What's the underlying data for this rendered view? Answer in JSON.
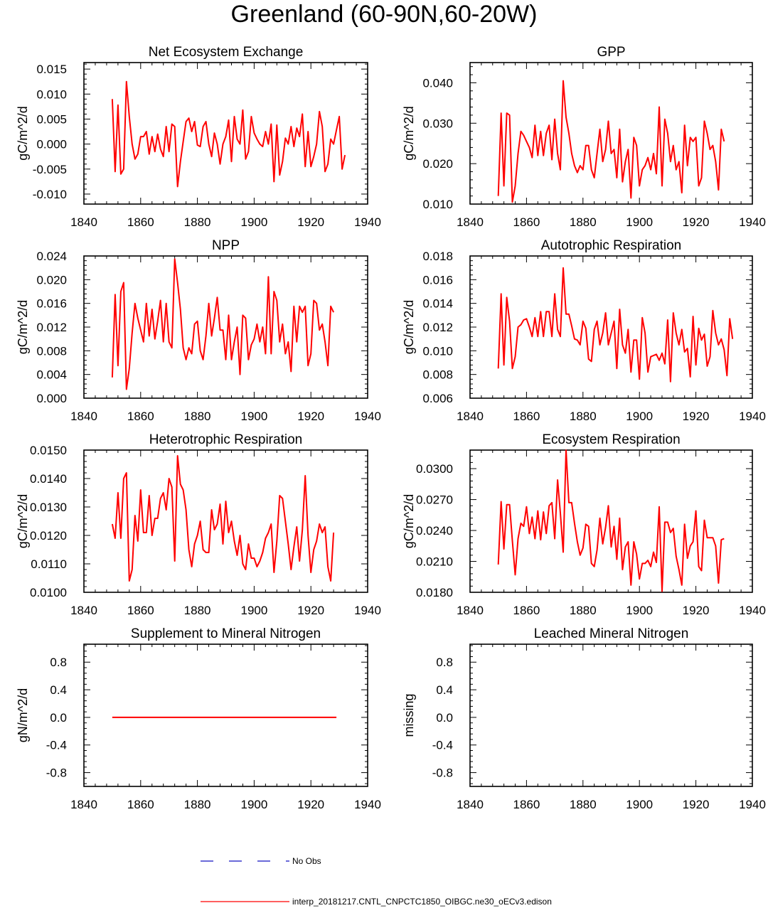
{
  "page": {
    "title": "Greenland (60-90N,60-20W)"
  },
  "legend": {
    "obs_label": "No Obs",
    "obs_color": "#1010c0",
    "model_label": "interp_20181217.CNTL_CNPCTC1850_OIBGC.ne30_oECv3.edison",
    "model_color": "#ff0000"
  },
  "chart_data": [
    {
      "type": "line",
      "title": "Net Ecosystem Exchange",
      "ylabel": "gC/m^2/d",
      "xlim": [
        1840,
        1940
      ],
      "ylim": [
        -0.012,
        0.0163
      ],
      "xticks": [
        1840,
        1860,
        1880,
        1900,
        1920,
        1940
      ],
      "yticks": [
        -0.01,
        -0.005,
        0.0,
        0.005,
        0.01,
        0.015
      ],
      "ytick_labels": [
        "-0.010",
        "-0.005",
        "0.000",
        "0.005",
        "0.010",
        "0.015"
      ],
      "series": [
        {
          "name": "interp_20181217.CNTL_CNPCTC1850_OIBGC.ne30_oECv3.edison",
          "color": "#ff0000",
          "x_start": 1850,
          "values": [
            0.009,
            -0.0055,
            0.0078,
            -0.006,
            -0.005,
            0.0125,
            0.0055,
            0.0,
            -0.003,
            -0.002,
            0.0015,
            0.0015,
            0.0025,
            -0.002,
            0.0015,
            -0.0015,
            0.002,
            -0.001,
            -0.0025,
            0.0035,
            -0.0015,
            0.004,
            0.0035,
            -0.0085,
            -0.0035,
            0.0005,
            0.0045,
            0.0052,
            0.0025,
            0.0045,
            -0.0002,
            -0.0005,
            0.0035,
            0.0045,
            0.0,
            -0.0025,
            0.0022,
            0.0,
            -0.004,
            0.0,
            0.0015,
            0.0048,
            -0.0035,
            0.0055,
            0.001,
            0.0,
            0.0068,
            -0.003,
            -0.0015,
            0.0055,
            0.0022,
            0.001,
            0.0,
            -0.0005,
            0.0025,
            0.0,
            0.004,
            -0.0075,
            0.0038,
            -0.0062,
            -0.0035,
            0.0012,
            0.0,
            0.0035,
            -0.0005,
            0.0032,
            0.0015,
            0.006,
            -0.0045,
            0.0025,
            -0.0045,
            -0.0025,
            0.0,
            0.0065,
            0.0035,
            -0.0055,
            -0.004,
            0.001,
            0.0,
            0.0028,
            0.0055,
            -0.005,
            -0.0022
          ]
        }
      ]
    },
    {
      "type": "line",
      "title": "GPP",
      "ylabel": "gC/m^2/d",
      "xlim": [
        1840,
        1940
      ],
      "ylim": [
        0.01,
        0.045
      ],
      "xticks": [
        1840,
        1860,
        1880,
        1900,
        1920,
        1940
      ],
      "yticks": [
        0.01,
        0.02,
        0.03,
        0.04
      ],
      "ytick_labels": [
        "0.010",
        "0.020",
        "0.030",
        "0.040"
      ],
      "series": [
        {
          "name": "interp_20181217.CNTL_CNPCTC1850_OIBGC.ne30_oECv3.edison",
          "color": "#ff0000",
          "x_start": 1850,
          "values": [
            0.012,
            0.0325,
            0.0145,
            0.0325,
            0.032,
            0.0105,
            0.0145,
            0.0225,
            0.028,
            0.027,
            0.0255,
            0.024,
            0.0215,
            0.0295,
            0.022,
            0.028,
            0.022,
            0.0275,
            0.0295,
            0.021,
            0.031,
            0.0225,
            0.0185,
            0.0405,
            0.0315,
            0.0275,
            0.0225,
            0.0195,
            0.0178,
            0.0195,
            0.0185,
            0.0245,
            0.0245,
            0.0185,
            0.0165,
            0.0225,
            0.0285,
            0.0205,
            0.0235,
            0.0305,
            0.0225,
            0.0235,
            0.0165,
            0.0285,
            0.0155,
            0.0205,
            0.0235,
            0.0115,
            0.0265,
            0.0245,
            0.0145,
            0.0185,
            0.0195,
            0.0215,
            0.0185,
            0.0225,
            0.0175,
            0.034,
            0.0145,
            0.031,
            0.0275,
            0.0205,
            0.0245,
            0.0185,
            0.0205,
            0.0128,
            0.0295,
            0.0195,
            0.0265,
            0.0255,
            0.0265,
            0.0145,
            0.0165,
            0.0305,
            0.0275,
            0.0235,
            0.0245,
            0.0205,
            0.0135,
            0.0285,
            0.0255
          ]
        }
      ]
    },
    {
      "type": "line",
      "title": "NPP",
      "ylabel": "gC/m^2/d",
      "xlim": [
        1840,
        1940
      ],
      "ylim": [
        0.0,
        0.024
      ],
      "xticks": [
        1840,
        1860,
        1880,
        1900,
        1920,
        1940
      ],
      "yticks": [
        0.0,
        0.004,
        0.008,
        0.012,
        0.016,
        0.02,
        0.024
      ],
      "ytick_labels": [
        "0.000",
        "0.004",
        "0.008",
        "0.012",
        "0.016",
        "0.020",
        "0.024"
      ],
      "series": [
        {
          "name": "interp_20181217.CNTL_CNPCTC1850_OIBGC.ne30_oECv3.edison",
          "color": "#ff0000",
          "x_start": 1850,
          "values": [
            0.0035,
            0.0175,
            0.0055,
            0.018,
            0.0195,
            0.0015,
            0.005,
            0.011,
            0.016,
            0.0135,
            0.0115,
            0.0095,
            0.016,
            0.0105,
            0.015,
            0.01,
            0.013,
            0.0165,
            0.0095,
            0.016,
            0.0095,
            0.0085,
            0.0235,
            0.0195,
            0.015,
            0.0085,
            0.0065,
            0.0085,
            0.0075,
            0.0125,
            0.013,
            0.008,
            0.0065,
            0.0105,
            0.016,
            0.0105,
            0.0135,
            0.017,
            0.0115,
            0.0115,
            0.0065,
            0.014,
            0.0065,
            0.0095,
            0.012,
            0.004,
            0.014,
            0.0135,
            0.0065,
            0.009,
            0.01,
            0.0125,
            0.0095,
            0.012,
            0.0075,
            0.0205,
            0.0075,
            0.018,
            0.0165,
            0.0095,
            0.0125,
            0.0075,
            0.0095,
            0.0045,
            0.0155,
            0.0095,
            0.0155,
            0.0145,
            0.0155,
            0.0055,
            0.0075,
            0.0165,
            0.016,
            0.0115,
            0.0125,
            0.0095,
            0.0055,
            0.0155,
            0.0145
          ]
        }
      ]
    },
    {
      "type": "line",
      "title": "Autotrophic Respiration",
      "ylabel": "gC/m^2/d",
      "xlim": [
        1840,
        1940
      ],
      "ylim": [
        0.006,
        0.018
      ],
      "xticks": [
        1840,
        1860,
        1880,
        1900,
        1920,
        1940
      ],
      "yticks": [
        0.006,
        0.008,
        0.01,
        0.012,
        0.014,
        0.016,
        0.018
      ],
      "ytick_labels": [
        "0.006",
        "0.008",
        "0.010",
        "0.012",
        "0.014",
        "0.016",
        "0.018"
      ],
      "series": [
        {
          "name": "interp_20181217.CNTL_CNPCTC1850_OIBGC.ne30_oECv3.edison",
          "color": "#ff0000",
          "x_start": 1850,
          "values": [
            0.0085,
            0.0148,
            0.0088,
            0.0145,
            0.0125,
            0.0085,
            0.0095,
            0.012,
            0.0122,
            0.0126,
            0.0127,
            0.012,
            0.0112,
            0.0128,
            0.0112,
            0.0133,
            0.0112,
            0.0133,
            0.0133,
            0.0112,
            0.0148,
            0.0118,
            0.0112,
            0.017,
            0.0131,
            0.0131,
            0.0121,
            0.011,
            0.0109,
            0.0105,
            0.0125,
            0.0119,
            0.0093,
            0.0091,
            0.0118,
            0.0125,
            0.0105,
            0.0115,
            0.0132,
            0.0105,
            0.0115,
            0.0125,
            0.0085,
            0.0135,
            0.0105,
            0.0098,
            0.0118,
            0.0082,
            0.0109,
            0.0109,
            0.0076,
            0.0128,
            0.0115,
            0.0082,
            0.0095,
            0.0096,
            0.0097,
            0.0092,
            0.0098,
            0.0089,
            0.0126,
            0.0074,
            0.0132,
            0.0115,
            0.0105,
            0.0118,
            0.0099,
            0.0102,
            0.0078,
            0.0129,
            0.0088,
            0.0119,
            0.0109,
            0.0114,
            0.0087,
            0.0095,
            0.0134,
            0.0115,
            0.0105,
            0.011,
            0.0101,
            0.0079,
            0.0127,
            0.011
          ]
        }
      ]
    },
    {
      "type": "line",
      "title": "Heterotrophic Respiration",
      "ylabel": "gC/m^2/d",
      "xlim": [
        1840,
        1940
      ],
      "ylim": [
        0.01,
        0.015
      ],
      "xticks": [
        1840,
        1860,
        1880,
        1900,
        1920,
        1940
      ],
      "yticks": [
        0.01,
        0.011,
        0.012,
        0.013,
        0.014,
        0.015
      ],
      "ytick_labels": [
        "0.0100",
        "0.0110",
        "0.0120",
        "0.0130",
        "0.0140",
        "0.0150"
      ],
      "series": [
        {
          "name": "interp_20181217.CNTL_CNPCTC1850_OIBGC.ne30_oECv3.edison",
          "color": "#ff0000",
          "x_start": 1850,
          "values": [
            0.0124,
            0.0119,
            0.0135,
            0.0119,
            0.014,
            0.0142,
            0.0104,
            0.0108,
            0.0127,
            0.0118,
            0.0136,
            0.0121,
            0.0121,
            0.0134,
            0.012,
            0.0126,
            0.0126,
            0.0133,
            0.0135,
            0.0129,
            0.014,
            0.0137,
            0.0111,
            0.0148,
            0.0138,
            0.0136,
            0.0129,
            0.0115,
            0.0109,
            0.0117,
            0.012,
            0.0125,
            0.0115,
            0.0114,
            0.0114,
            0.0129,
            0.0122,
            0.0124,
            0.0131,
            0.0117,
            0.0132,
            0.0121,
            0.0125,
            0.0118,
            0.0113,
            0.012,
            0.011,
            0.0108,
            0.0117,
            0.0112,
            0.0112,
            0.0109,
            0.0111,
            0.0114,
            0.0119,
            0.0121,
            0.0124,
            0.0107,
            0.0118,
            0.0134,
            0.0133,
            0.0125,
            0.0117,
            0.0108,
            0.0116,
            0.0123,
            0.0111,
            0.0122,
            0.0141,
            0.012,
            0.0107,
            0.0115,
            0.0118,
            0.0124,
            0.0121,
            0.0123,
            0.0109,
            0.0104,
            0.0121
          ]
        }
      ]
    },
    {
      "type": "line",
      "title": "Ecosystem Respiration",
      "ylabel": "gC/m^2/d",
      "xlim": [
        1840,
        1940
      ],
      "ylim": [
        0.018,
        0.0318
      ],
      "xticks": [
        1840,
        1860,
        1880,
        1900,
        1920,
        1940
      ],
      "yticks": [
        0.018,
        0.021,
        0.024,
        0.027,
        0.03
      ],
      "ytick_labels": [
        "0.0180",
        "0.0210",
        "0.0240",
        "0.0270",
        "0.0300"
      ],
      "series": [
        {
          "name": "interp_20181217.CNTL_CNPCTC1850_OIBGC.ne30_oECv3.edison",
          "color": "#ff0000",
          "x_start": 1850,
          "values": [
            0.0207,
            0.0268,
            0.0222,
            0.0265,
            0.0265,
            0.023,
            0.0197,
            0.0232,
            0.0247,
            0.0244,
            0.0263,
            0.0237,
            0.0253,
            0.0232,
            0.0259,
            0.0231,
            0.0258,
            0.0237,
            0.0264,
            0.0267,
            0.0232,
            0.0289,
            0.0257,
            0.0219,
            0.0318,
            0.0267,
            0.0267,
            0.0247,
            0.0229,
            0.0216,
            0.0223,
            0.0246,
            0.0244,
            0.0208,
            0.0205,
            0.0221,
            0.0252,
            0.0227,
            0.0243,
            0.0264,
            0.0224,
            0.0244,
            0.0212,
            0.0252,
            0.0202,
            0.0224,
            0.0229,
            0.0187,
            0.0229,
            0.0217,
            0.0193,
            0.0208,
            0.0208,
            0.0211,
            0.0205,
            0.0219,
            0.0209,
            0.0263,
            0.0181,
            0.0248,
            0.0248,
            0.0238,
            0.0242,
            0.0215,
            0.0202,
            0.0187,
            0.0246,
            0.0213,
            0.0225,
            0.0229,
            0.0259,
            0.0205,
            0.0201,
            0.025,
            0.0233,
            0.0233,
            0.0233,
            0.0225,
            0.0189,
            0.0231,
            0.0232
          ]
        }
      ]
    },
    {
      "type": "line",
      "title": "Supplement to Mineral Nitrogen",
      "ylabel": "gN/m^2/d",
      "xlim": [
        1840,
        1940
      ],
      "ylim": [
        -1.0,
        1.06
      ],
      "xticks": [
        1840,
        1860,
        1880,
        1900,
        1920,
        1940
      ],
      "yticks": [
        -0.8,
        -0.4,
        0.0,
        0.4,
        0.8
      ],
      "ytick_labels": [
        "-0.8",
        "-0.4",
        "0.0",
        "0.4",
        "0.8"
      ],
      "series": [
        {
          "name": "interp_20181217.CNTL_CNPCTC1850_OIBGC.ne30_oECv3.edison",
          "color": "#ff0000",
          "x": [
            1850,
            1929
          ],
          "values": [
            0.0,
            0.0
          ]
        }
      ]
    },
    {
      "type": "line",
      "title": "Leached Mineral Nitrogen",
      "ylabel": "missing",
      "xlim": [
        1840,
        1940
      ],
      "ylim": [
        -1.0,
        1.06
      ],
      "xticks": [
        1840,
        1860,
        1880,
        1900,
        1920,
        1940
      ],
      "yticks": [
        -0.8,
        -0.4,
        0.0,
        0.4,
        0.8
      ],
      "ytick_labels": [
        "-0.8",
        "-0.4",
        "0.0",
        "0.4",
        "0.8"
      ],
      "series": []
    }
  ]
}
